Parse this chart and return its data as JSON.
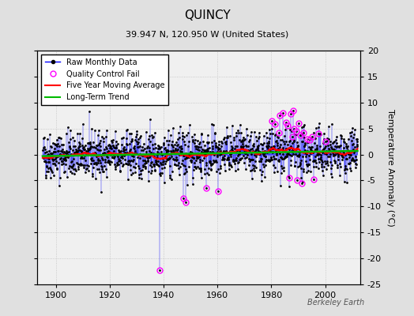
{
  "title": "QUINCY",
  "subtitle": "39.947 N, 120.950 W (United States)",
  "ylabel": "Temperature Anomaly (°C)",
  "xlabel_years": [
    1900,
    1920,
    1940,
    1960,
    1980,
    2000
  ],
  "ylim": [
    -25,
    20
  ],
  "yticks": [
    -25,
    -20,
    -15,
    -10,
    -5,
    0,
    5,
    10,
    15,
    20
  ],
  "xmin": 1893,
  "xmax": 2013,
  "raw_color": "#0000ff",
  "qc_fail_color": "#ff00ff",
  "moving_avg_color": "#ff0000",
  "trend_color": "#00bb00",
  "background_color": "#e0e0e0",
  "plot_bg_color": "#f0f0f0",
  "watermark": "Berkeley Earth",
  "seed": 42,
  "years_start": 1895,
  "years_end": 2012,
  "noise_std": 2.2
}
